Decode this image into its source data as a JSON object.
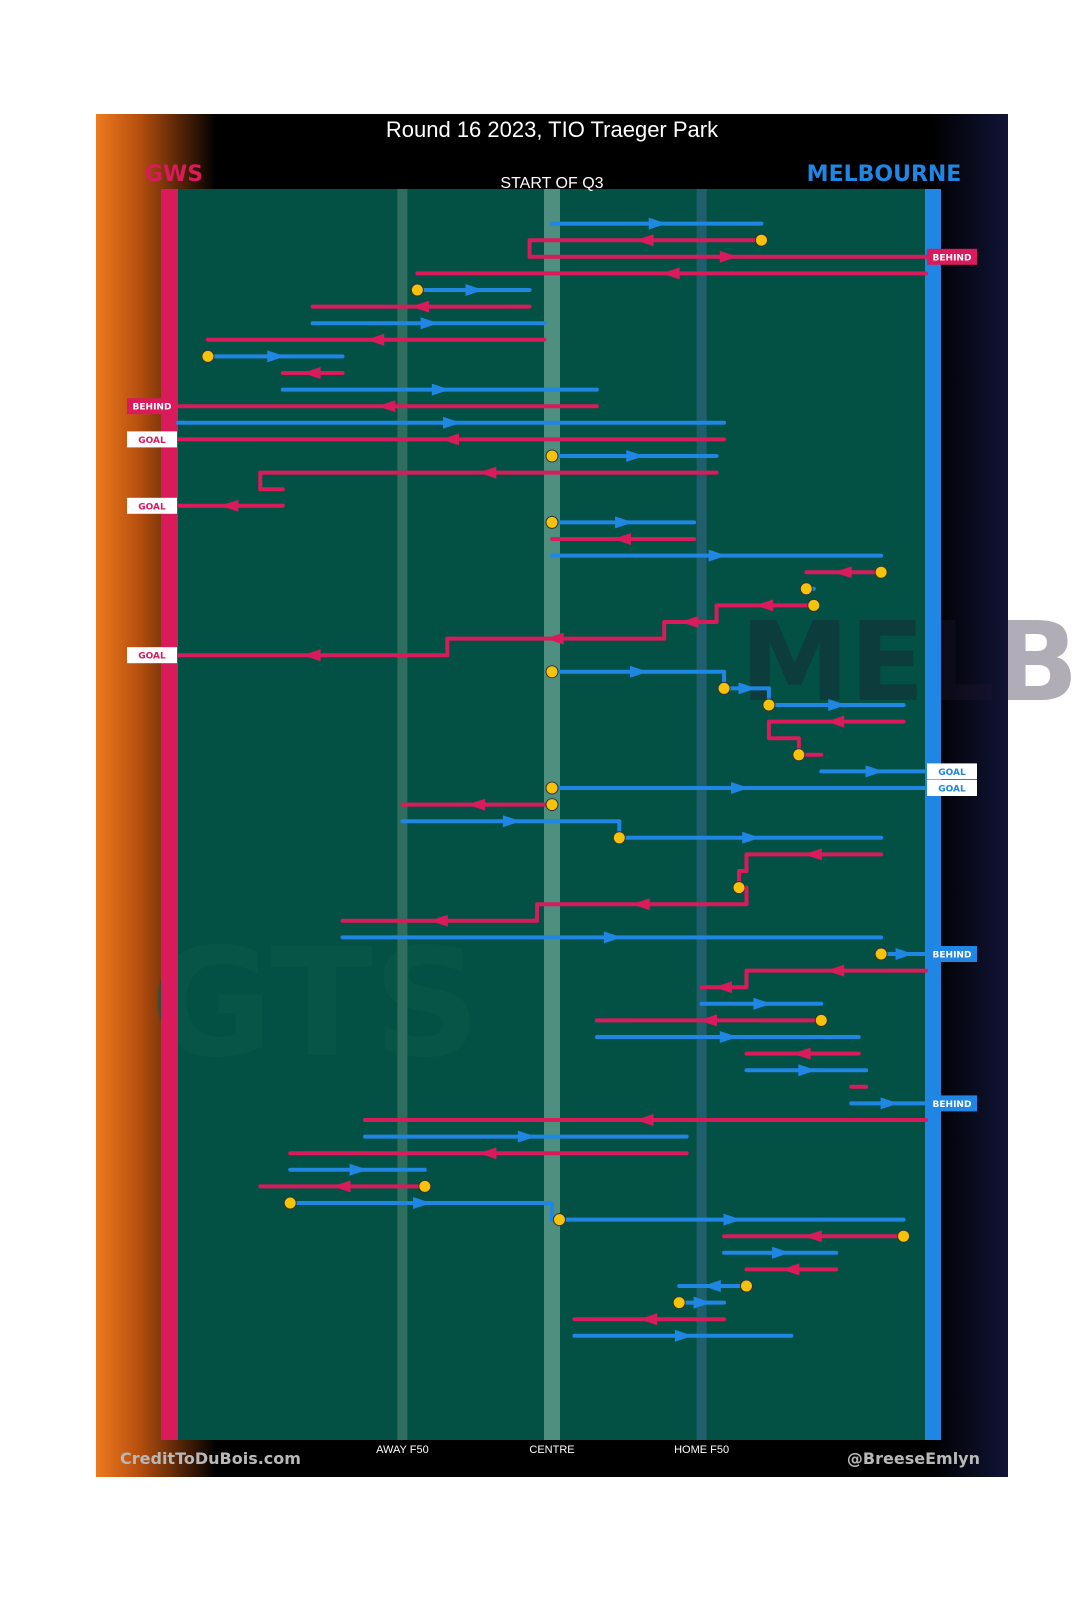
{
  "chart_data": {
    "type": "line",
    "title": "Round 16 2023, TIO Traeger Park",
    "subtitle": "START OF Q3",
    "teams": {
      "left": {
        "name": "GWS",
        "color": "#d91a5b"
      },
      "right": {
        "name": "MELBOURNE",
        "color": "#1f86e3"
      }
    },
    "x_axis": {
      "range": [
        0,
        100
      ],
      "ticks": [
        {
          "label": "AWAY F50",
          "value": 30
        },
        {
          "label": "CENTRE",
          "value": 50
        },
        {
          "label": "HOME F50",
          "value": 70
        }
      ]
    },
    "credits": {
      "left": "CreditToDuBois.com",
      "right": "@BreeseEmlyn"
    },
    "watermark": {
      "left": "GTS",
      "right": "MELBOURNE"
    },
    "colors": {
      "field": "#035044",
      "background": "#000000",
      "marker": "#f6c30a"
    },
    "stoppage_ids": [
      3,
      18,
      26,
      34,
      40,
      42,
      53,
      71
    ],
    "chains": [
      {
        "team": "MELBOURNE",
        "segments": [
          {
            "x": [
              50,
              78
            ],
            "y": 1
          }
        ]
      },
      {
        "team": "GWS",
        "segments": [
          {
            "x": [
              78,
              47
            ],
            "y": 2,
            "stoppage": true
          },
          {
            "x": [
              47,
              100
            ],
            "y": 3,
            "end": "BEHIND"
          }
        ]
      },
      {
        "team": "GWS",
        "segments": [
          {
            "x": [
              100,
              32
            ],
            "y": 4
          }
        ]
      },
      {
        "team": "MELBOURNE",
        "segments": [
          {
            "x": [
              32,
              47
            ],
            "y": 5,
            "stoppage": true
          }
        ]
      },
      {
        "team": "GWS",
        "segments": [
          {
            "x": [
              47,
              18
            ],
            "y": 6
          }
        ]
      },
      {
        "team": "MELBOURNE",
        "segments": [
          {
            "x": [
              18,
              49
            ],
            "y": 7
          }
        ]
      },
      {
        "team": "GWS",
        "segments": [
          {
            "x": [
              49,
              4
            ],
            "y": 8
          }
        ]
      },
      {
        "team": "MELBOURNE",
        "segments": [
          {
            "x": [
              4,
              22
            ],
            "y": 9,
            "stoppage": true
          }
        ]
      },
      {
        "team": "GWS",
        "segments": [
          {
            "x": [
              22,
              14
            ],
            "y": 10
          }
        ]
      },
      {
        "team": "MELBOURNE",
        "segments": [
          {
            "x": [
              14,
              56
            ],
            "y": 11
          }
        ]
      },
      {
        "team": "GWS",
        "segments": [
          {
            "x": [
              56,
              0
            ],
            "y": 12,
            "end": "BEHIND"
          }
        ]
      },
      {
        "team": "MELBOURNE",
        "segments": [
          {
            "x": [
              0,
              73
            ],
            "y": 13
          }
        ]
      },
      {
        "team": "GWS",
        "segments": [
          {
            "x": [
              73,
              0
            ],
            "y": 14,
            "end": "GOAL"
          }
        ]
      },
      {
        "team": "MELBOURNE",
        "segments": [
          {
            "x": [
              50,
              72
            ],
            "y": 15,
            "stoppage": true
          }
        ]
      },
      {
        "team": "GWS",
        "segments": [
          {
            "x": [
              72,
              11
            ],
            "y": 16
          },
          {
            "x": [
              11,
              14
            ],
            "y": 17
          }
        ]
      },
      {
        "team": "GWS",
        "segments": [
          {
            "x": [
              14,
              0
            ],
            "y": 18,
            "end": "GOAL"
          }
        ]
      },
      {
        "team": "MELBOURNE",
        "segments": [
          {
            "x": [
              50,
              69
            ],
            "y": 19,
            "stoppage": true
          }
        ]
      },
      {
        "team": "GWS",
        "segments": [
          {
            "x": [
              69,
              50
            ],
            "y": 20
          }
        ]
      },
      {
        "team": "MELBOURNE",
        "segments": [
          {
            "x": [
              50,
              94
            ],
            "y": 21
          }
        ]
      },
      {
        "team": "GWS",
        "segments": [
          {
            "x": [
              94,
              84
            ],
            "y": 22,
            "stoppage": true
          }
        ]
      },
      {
        "team": "MELBOURNE",
        "segments": [
          {
            "x": [
              84,
              85
            ],
            "y": 23,
            "stoppage": true
          }
        ]
      },
      {
        "team": "GWS",
        "segments": [
          {
            "x": [
              85,
              72
            ],
            "y": 24,
            "stoppage": true
          },
          {
            "x": [
              72,
              65
            ],
            "y": 25
          },
          {
            "x": [
              65,
              36
            ],
            "y": 26
          },
          {
            "x": [
              36,
              0
            ],
            "y": 27,
            "end": "GOAL"
          }
        ]
      },
      {
        "team": "MELBOURNE",
        "segments": [
          {
            "x": [
              50,
              73
            ],
            "y": 28,
            "stoppage": true
          },
          {
            "x": [
              73,
              79
            ],
            "y": 29,
            "stoppage": true
          },
          {
            "x": [
              79,
              97
            ],
            "y": 30,
            "stoppage": true
          }
        ]
      },
      {
        "team": "GWS",
        "segments": [
          {
            "x": [
              97,
              79
            ],
            "y": 31
          },
          {
            "x": [
              79,
              83
            ],
            "y": 32
          },
          {
            "x": [
              83,
              86
            ],
            "y": 33,
            "stoppage": true
          }
        ]
      },
      {
        "team": "MELBOURNE",
        "segments": [
          {
            "x": [
              86,
              100
            ],
            "y": 34,
            "end": "GOAL"
          }
        ]
      },
      {
        "team": "MELBOURNE",
        "segments": [
          {
            "x": [
              50,
              100
            ],
            "y": 35,
            "stoppage": true,
            "end": "GOAL"
          }
        ]
      },
      {
        "team": "GWS",
        "segments": [
          {
            "x": [
              50,
              30
            ],
            "y": 36,
            "stoppage": true
          }
        ]
      },
      {
        "team": "MELBOURNE",
        "segments": [
          {
            "x": [
              30,
              59
            ],
            "y": 37
          },
          {
            "x": [
              59,
              94
            ],
            "y": 38,
            "stoppage": true
          }
        ]
      },
      {
        "team": "GWS",
        "segments": [
          {
            "x": [
              94,
              76
            ],
            "y": 39
          },
          {
            "x": [
              76,
              75
            ],
            "y": 40
          },
          {
            "x": [
              75,
              76
            ],
            "y": 41,
            "stoppage": true
          },
          {
            "x": [
              76,
              48
            ],
            "y": 42
          },
          {
            "x": [
              48,
              22
            ],
            "y": 43
          }
        ]
      },
      {
        "team": "MELBOURNE",
        "segments": [
          {
            "x": [
              22,
              94
            ],
            "y": 44
          }
        ]
      },
      {
        "team": "MELBOURNE",
        "segments": [
          {
            "x": [
              94,
              100
            ],
            "y": 45,
            "stoppage": true,
            "end": "BEHIND"
          }
        ]
      },
      {
        "team": "GWS",
        "segments": [
          {
            "x": [
              100,
              76
            ],
            "y": 46
          },
          {
            "x": [
              76,
              70
            ],
            "y": 47
          }
        ]
      },
      {
        "team": "MELBOURNE",
        "segments": [
          {
            "x": [
              70,
              86
            ],
            "y": 48
          }
        ]
      },
      {
        "team": "GWS",
        "segments": [
          {
            "x": [
              86,
              56
            ],
            "y": 49,
            "stoppage": true
          }
        ]
      },
      {
        "team": "MELBOURNE",
        "segments": [
          {
            "x": [
              56,
              91
            ],
            "y": 50
          }
        ]
      },
      {
        "team": "GWS",
        "segments": [
          {
            "x": [
              91,
              76
            ],
            "y": 51
          }
        ]
      },
      {
        "team": "MELBOURNE",
        "segments": [
          {
            "x": [
              76,
              92
            ],
            "y": 52
          }
        ]
      },
      {
        "team": "GWS",
        "segments": [
          {
            "x": [
              92,
              90
            ],
            "y": 53
          }
        ]
      },
      {
        "team": "MELBOURNE",
        "segments": [
          {
            "x": [
              90,
              100
            ],
            "y": 54,
            "end": "BEHIND"
          }
        ]
      },
      {
        "team": "GWS",
        "segments": [
          {
            "x": [
              100,
              25
            ],
            "y": 55
          }
        ]
      },
      {
        "team": "MELBOURNE",
        "segments": [
          {
            "x": [
              25,
              68
            ],
            "y": 56
          }
        ]
      },
      {
        "team": "GWS",
        "segments": [
          {
            "x": [
              68,
              15
            ],
            "y": 57
          }
        ]
      },
      {
        "team": "MELBOURNE",
        "segments": [
          {
            "x": [
              15,
              33
            ],
            "y": 58
          }
        ]
      },
      {
        "team": "GWS",
        "segments": [
          {
            "x": [
              33,
              11
            ],
            "y": 59,
            "stoppage": true
          }
        ]
      },
      {
        "team": "MELBOURNE",
        "segments": [
          {
            "x": [
              15,
              50
            ],
            "y": 60,
            "stoppage": true
          },
          {
            "x": [
              51,
              97
            ],
            "y": 61,
            "stoppage": true
          }
        ]
      },
      {
        "team": "GWS",
        "segments": [
          {
            "x": [
              97,
              73
            ],
            "y": 62,
            "stoppage": true
          }
        ]
      },
      {
        "team": "MELBOURNE",
        "segments": [
          {
            "x": [
              73,
              88
            ],
            "y": 63
          }
        ]
      },
      {
        "team": "GWS",
        "segments": [
          {
            "x": [
              88,
              76
            ],
            "y": 64
          }
        ]
      },
      {
        "team": "MELBOURNE",
        "segments": [
          {
            "x": [
              76,
              67
            ],
            "y": 65,
            "stoppage": true
          }
        ]
      },
      {
        "team": "MELBOURNE",
        "segments": [
          {
            "x": [
              67,
              73
            ],
            "y": 66,
            "stoppage": true
          }
        ]
      },
      {
        "team": "GWS",
        "segments": [
          {
            "x": [
              73,
              53
            ],
            "y": 67
          }
        ]
      },
      {
        "team": "MELBOURNE",
        "segments": [
          {
            "x": [
              53,
              82
            ],
            "y": 68
          }
        ]
      }
    ]
  }
}
